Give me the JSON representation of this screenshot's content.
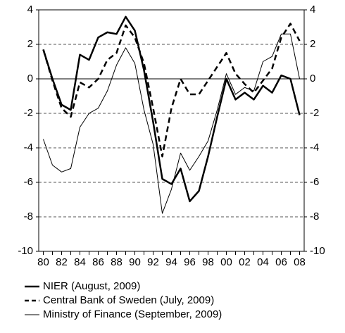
{
  "chart_data": {
    "type": "line",
    "categories": [
      "80",
      null,
      "82",
      null,
      "84",
      null,
      "86",
      null,
      "88",
      null,
      "90",
      null,
      "92",
      null,
      "94",
      null,
      "96",
      null,
      "98",
      null,
      "00",
      null,
      "02",
      null,
      "04",
      null,
      "06",
      null,
      "08"
    ],
    "series": [
      {
        "name": "NIER (August, 2009)",
        "color": "#000000",
        "line_style": "solid",
        "line_width": 2.5,
        "values": [
          1.7,
          0,
          -1.5,
          -1.8,
          1.4,
          1.1,
          2.4,
          2.7,
          2.6,
          3.6,
          2.8,
          0.5,
          -2.5,
          -5.8,
          -6.1,
          -5.2,
          -7.1,
          -6.5,
          -4.5,
          -2.2,
          0,
          -1.2,
          -0.8,
          -1.2,
          -0.4,
          -0.8,
          0.2,
          0,
          -2.1
        ]
      },
      {
        "name": "Central Bank of Sweden (July, 2009)",
        "color": "#000000",
        "line_style": "dashed",
        "line_width": 2.5,
        "values": [
          1.7,
          -0.1,
          -1.7,
          -2.2,
          -0.2,
          -0.5,
          0,
          1.1,
          1.5,
          3.1,
          2.4,
          0.9,
          -1.7,
          -4.5,
          -1.7,
          0,
          -0.9,
          -0.9,
          -0.1,
          0.7,
          1.5,
          0.3,
          -0.3,
          -0.8,
          -0.1,
          0.6,
          2.4,
          3.2,
          2.2
        ]
      },
      {
        "name": "Ministry of Finance (September, 2009)",
        "color": "#000000",
        "line_style": "solid",
        "line_width": 1,
        "values": [
          -3.5,
          -5,
          -5.4,
          -5.2,
          -2.8,
          -2,
          -1.7,
          -0.7,
          0.8,
          1.8,
          0.9,
          -1.8,
          -3.8,
          -7.8,
          -6.4,
          -4.3,
          -5.3,
          -4.5,
          -3.6,
          -1.8,
          0.3,
          -0.9,
          -0.5,
          -0.7,
          1.0,
          1.3,
          2.6,
          2.6,
          0
        ]
      }
    ],
    "ylim": [
      -10,
      4
    ],
    "yticks": [
      -10,
      -8,
      -6,
      -4,
      -2,
      0,
      2,
      4
    ],
    "y2lim": [
      -10,
      4
    ],
    "y2ticks": [
      -10,
      -8,
      -6,
      -4,
      -2,
      0,
      2,
      4
    ],
    "grid": true,
    "legend": "bottom"
  }
}
